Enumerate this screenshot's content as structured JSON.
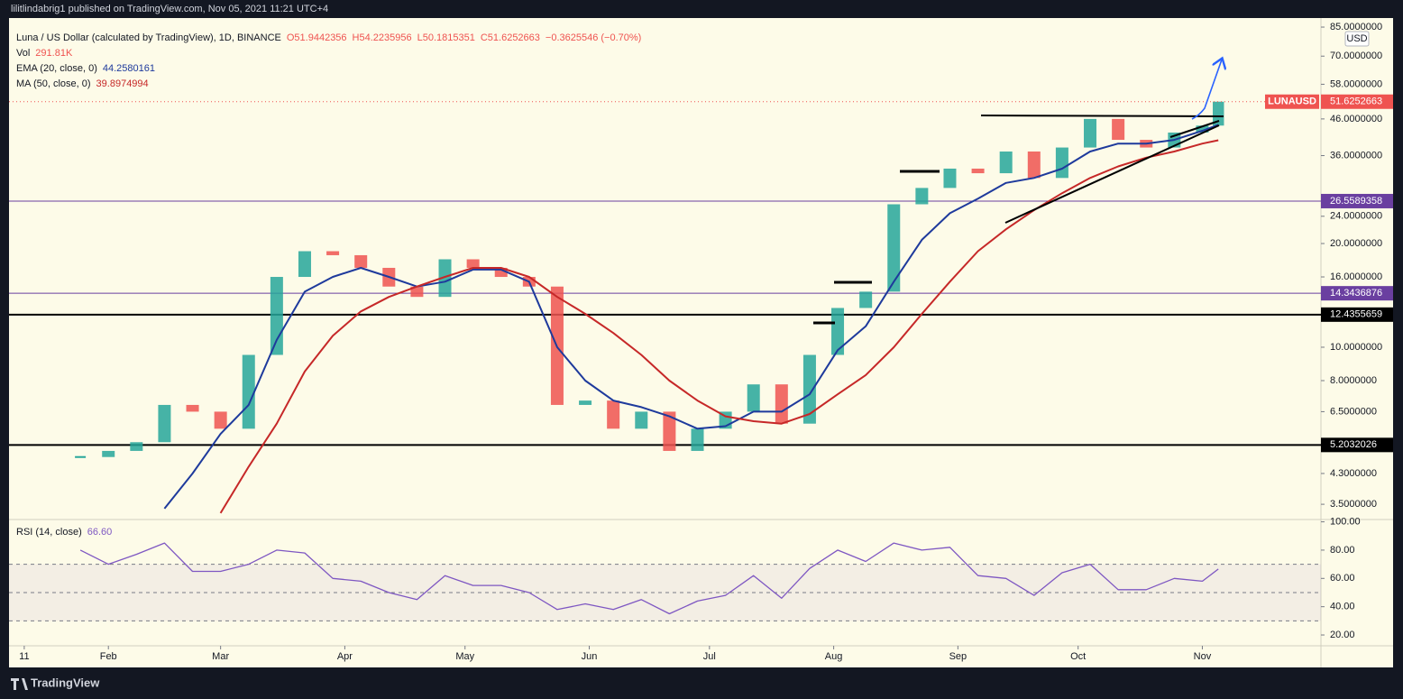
{
  "header": {
    "text": "lilitlindabrig1 published on TradingView.com, Nov 05, 2021 11:21 UTC+4"
  },
  "footer": {
    "brand": "TradingView"
  },
  "chart_data": [
    {
      "type": "candle",
      "title": "Luna / US Dollar (calculated by TradingView), 1D, BINANCE",
      "ohlc": [
        "O51.9442356",
        "H54.2235956",
        "L50.1815351",
        "C51.6252663",
        "−0.3625546 (−0.70%)"
      ],
      "volume": {
        "name": "Vol",
        "value": "291.81K"
      },
      "currency": "USD",
      "symbol": "LUNAUSD",
      "up_color": "#26a69a",
      "down_color": "#ef5350",
      "x": [
        14,
        21,
        28,
        35,
        42,
        49,
        56,
        63,
        70,
        77,
        84,
        91,
        98,
        105,
        112,
        119,
        126,
        133,
        140,
        147,
        154,
        161,
        168,
        175,
        182,
        189,
        196,
        203,
        210,
        217,
        224,
        231,
        238,
        245,
        252,
        259,
        266,
        273,
        280,
        287,
        294,
        298
      ],
      "values": [
        4.8,
        5.0,
        5.3,
        6.8,
        6.5,
        5.8,
        9.5,
        16,
        19,
        18.5,
        17,
        15,
        14,
        18,
        17,
        16,
        15,
        6.8,
        7.0,
        5.8,
        6.5,
        5.0,
        5.8,
        6.5,
        7.8,
        6.0,
        9.5,
        13,
        14.5,
        26,
        29,
        33,
        32,
        37,
        31,
        38,
        46,
        40,
        38,
        42,
        44,
        51.6252663
      ],
      "series": [
        {
          "name": "EMA (20, close, 0)",
          "color": "#1e3a9c",
          "values": [
            null,
            null,
            null,
            3.4,
            4.3,
            5.6,
            6.8,
            10.5,
            14.5,
            16,
            17,
            16,
            15,
            15.5,
            16.8,
            16.8,
            15.5,
            10,
            8,
            7,
            6.7,
            6.3,
            5.8,
            5.9,
            6.5,
            6.5,
            7.3,
            9.8,
            11.5,
            15.5,
            20.5,
            24.5,
            27,
            30,
            31,
            33,
            37,
            39,
            39,
            40,
            42.5,
            44.2580161
          ]
        },
        {
          "name": "MA (50, close, 0)",
          "color": "#c62828",
          "values": [
            null,
            null,
            null,
            null,
            null,
            3.3,
            4.5,
            6.0,
            8.5,
            10.8,
            12.7,
            14,
            15,
            16,
            17,
            17,
            16,
            14,
            12.5,
            11,
            9.5,
            8,
            7,
            6.3,
            6.1,
            6.0,
            6.4,
            7.3,
            8.3,
            10,
            12.5,
            15.5,
            19,
            22,
            25,
            28,
            31,
            33.5,
            35.5,
            37,
            39,
            39.8974994
          ]
        }
      ],
      "levels": [
        {
          "value": 26.5589358,
          "color": "#6a3fa0"
        },
        {
          "value": 14.3436876,
          "color": "#6a3fa0"
        },
        {
          "value": 12.4355659,
          "color": "#000000"
        },
        {
          "value": 5.2032026,
          "color": "#000000"
        }
      ],
      "log_y": true,
      "ylim": [
        3.18,
        90.3
      ],
      "yticks": [
        {
          "value": 85,
          "label": "85.0000000"
        },
        {
          "value": 70,
          "label": "70.0000000"
        },
        {
          "value": 58,
          "label": "58.0000000"
        },
        {
          "value": 46,
          "label": "46.0000000"
        },
        {
          "value": 36,
          "label": "36.0000000"
        },
        {
          "value": 24,
          "label": "24.0000000"
        },
        {
          "value": 20,
          "label": "20.0000000"
        },
        {
          "value": 16,
          "label": "16.0000000"
        },
        {
          "value": 10,
          "label": "10.0000000"
        },
        {
          "value": 8,
          "label": "8.0000000"
        },
        {
          "value": 6.5,
          "label": "6.5000000"
        },
        {
          "value": 4.3,
          "label": "4.3000000"
        },
        {
          "value": 3.5,
          "label": "3.5000000"
        }
      ],
      "xlim": [
        -3.8,
        323.6
      ],
      "xticks": [
        {
          "value": 0,
          "label": "11"
        },
        {
          "value": 21,
          "label": "Feb"
        },
        {
          "value": 49,
          "label": "Mar"
        },
        {
          "value": 80,
          "label": "Apr"
        },
        {
          "value": 110,
          "label": "May"
        },
        {
          "value": 141,
          "label": "Jun"
        },
        {
          "value": 171,
          "label": "Jul"
        },
        {
          "value": 202,
          "label": "Aug"
        },
        {
          "value": 233,
          "label": "Sep"
        },
        {
          "value": 263,
          "label": "Oct"
        },
        {
          "value": 294,
          "label": "Nov"
        }
      ]
    },
    {
      "type": "line",
      "title": "RSI (14, close)",
      "x": [
        14,
        21,
        28,
        35,
        42,
        49,
        56,
        63,
        70,
        77,
        84,
        91,
        98,
        105,
        112,
        119,
        126,
        133,
        140,
        147,
        154,
        161,
        168,
        175,
        182,
        189,
        196,
        203,
        210,
        217,
        224,
        231,
        238,
        245,
        252,
        259,
        266,
        273,
        280,
        287,
        294,
        298
      ],
      "series": [
        {
          "name": "RSI (14, close)",
          "color": "#7e57c2",
          "values": [
            80,
            70,
            77,
            85,
            65,
            65,
            70,
            80,
            78,
            60,
            58,
            50,
            45,
            62,
            55,
            55,
            50,
            38,
            42,
            38,
            45,
            35,
            44,
            48,
            62,
            46,
            67,
            80,
            72,
            85,
            80,
            82,
            62,
            60,
            48,
            64,
            70,
            52,
            52,
            60,
            58,
            66.6
          ],
          "value_labels": [
            "66.60"
          ]
        }
      ],
      "bands": [
        70,
        50,
        30
      ],
      "ylim": [
        13,
        101
      ],
      "yticks": [
        {
          "value": 100,
          "label": "100.00"
        },
        {
          "value": 80,
          "label": "80.00"
        },
        {
          "value": 60,
          "label": "60.00"
        },
        {
          "value": 40,
          "label": "40.00"
        },
        {
          "value": 20,
          "label": "20.00"
        }
      ],
      "xlim": [
        -3.8,
        323.6
      ]
    }
  ]
}
